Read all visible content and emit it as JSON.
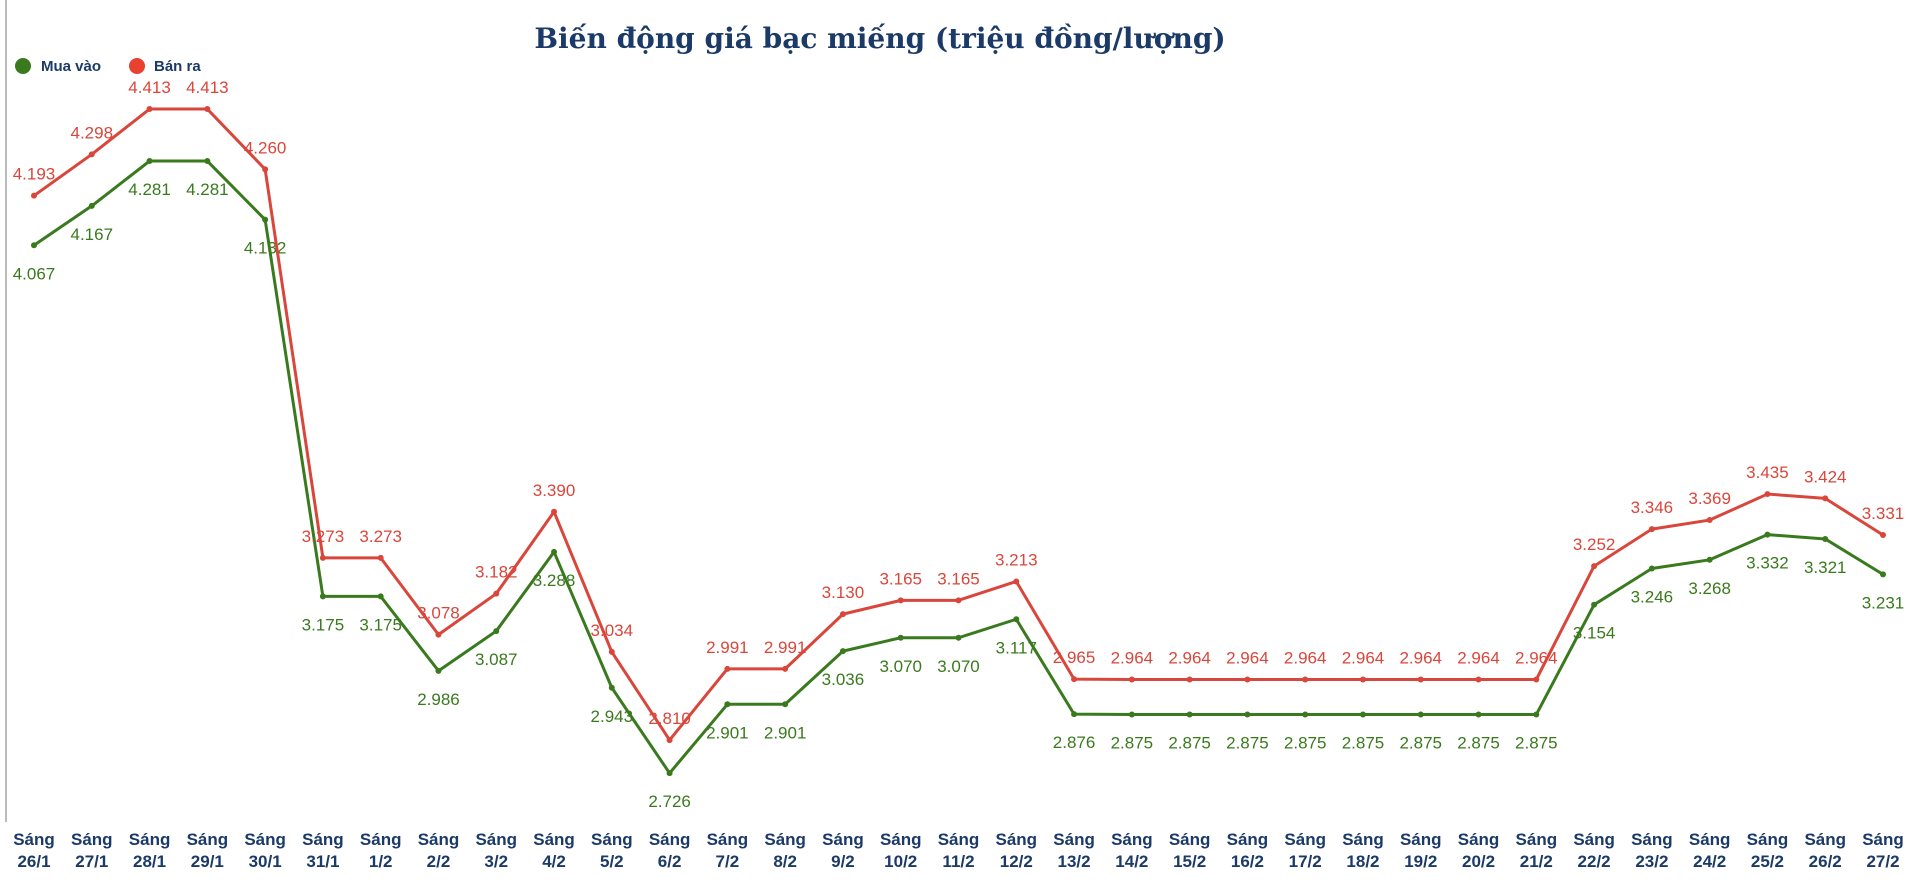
{
  "chart_data": {
    "type": "line",
    "title": "Biến động giá bạc miếng (triệu đồng/lượng)",
    "categories": [
      "Sáng 26/1",
      "Sáng 27/1",
      "Sáng 28/1",
      "Sáng 29/1",
      "Sáng 30/1",
      "Sáng 31/1",
      "Sáng 1/2",
      "Sáng 2/2",
      "Sáng 3/2",
      "Sáng 4/2",
      "Sáng 5/2",
      "Sáng 6/2",
      "Sáng 7/2",
      "Sáng 8/2",
      "Sáng 9/2",
      "Sáng 10/2",
      "Sáng 11/2",
      "Sáng 12/2",
      "Sáng 13/2",
      "Sáng 14/2",
      "Sáng 15/2",
      "Sáng 16/2",
      "Sáng 17/2",
      "Sáng 18/2",
      "Sáng 19/2",
      "Sáng 20/2",
      "Sáng 21/2",
      "Sáng 22/2",
      "Sáng 23/2",
      "Sáng 24/2",
      "Sáng 25/2",
      "Sáng 26/2",
      "Sáng 27/2"
    ],
    "series": [
      {
        "name": "Mua vào",
        "color": "#3a7a1e",
        "values": [
          4.067,
          4.167,
          4.281,
          4.281,
          4.132,
          3.175,
          3.175,
          2.986,
          3.087,
          3.288,
          2.943,
          2.726,
          2.901,
          2.901,
          3.036,
          3.07,
          3.07,
          3.117,
          2.876,
          2.875,
          2.875,
          2.875,
          2.875,
          2.875,
          2.875,
          2.875,
          2.875,
          3.154,
          3.246,
          3.268,
          3.332,
          3.321,
          3.231
        ]
      },
      {
        "name": "Bán ra",
        "color": "#d9463b",
        "values": [
          4.193,
          4.298,
          4.413,
          4.413,
          4.26,
          3.273,
          3.273,
          3.078,
          3.182,
          3.39,
          3.034,
          2.81,
          2.991,
          2.991,
          3.13,
          3.165,
          3.165,
          3.213,
          2.965,
          2.964,
          2.964,
          2.964,
          2.964,
          2.964,
          2.964,
          2.964,
          2.964,
          3.252,
          3.346,
          3.369,
          3.435,
          3.424,
          3.331
        ]
      }
    ],
    "ylim": [
      2.602,
      4.69
    ],
    "grid": false,
    "legend": "top-left",
    "xlabel": "",
    "ylabel": ""
  }
}
